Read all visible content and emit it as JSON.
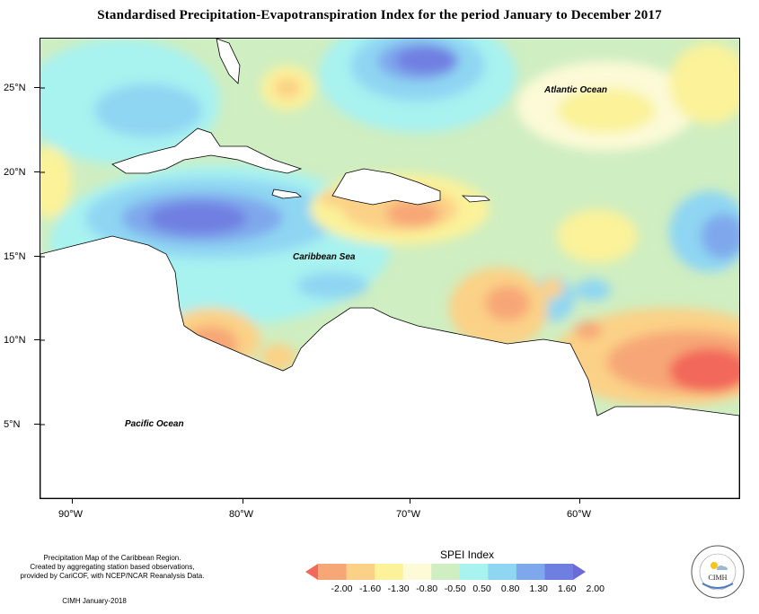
{
  "title": "Standardised Precipitation-Evapotranspiration Index for the period January to December 2017",
  "latitude_labels": [
    "25°N",
    "20°N",
    "15°N",
    "10°N",
    "5°N"
  ],
  "longitude_labels": [
    "90°W",
    "80°W",
    "70°W",
    "60°W"
  ],
  "place_labels": {
    "atlantic": "Atlantic Ocean",
    "caribbean": "Caribbean Sea",
    "pacific": "Pacific Ocean"
  },
  "credits": {
    "line1": "Precipitation Map of the Caribbean Region.",
    "line2": "Created by aggregating station based observations,",
    "line3": "provided by CariCOF, with NCEP/NCAR Reanalysis Data.",
    "date": "CIMH January-2018"
  },
  "legend": {
    "title": "SPEI Index",
    "values": [
      "-2.00",
      "-1.60",
      "-1.30",
      "-0.80",
      "-0.50",
      "0.50",
      "0.80",
      "1.30",
      "1.60",
      "2.00"
    ],
    "colors": [
      "#f2685a",
      "#f7a777",
      "#fbd187",
      "#fbf29a",
      "#fcfad7",
      "#cfeec1",
      "#a8f2f0",
      "#8fd6f3",
      "#7fa8ec",
      "#6f7fe1",
      "#6a6ad8"
    ]
  },
  "logo": {
    "text": "CIMH"
  }
}
